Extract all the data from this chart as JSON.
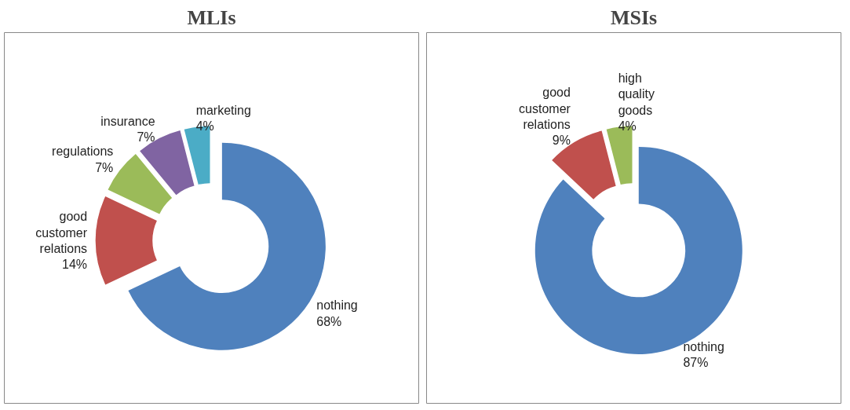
{
  "chart_data": [
    {
      "type": "donut",
      "title": "MLIs",
      "categories": [
        "nothing",
        "good customer relations",
        "regulations",
        "insurance",
        "marketing"
      ],
      "values": [
        68,
        14,
        7,
        7,
        4
      ],
      "colors": [
        "#4f81bd",
        "#c0504d",
        "#9bbb59",
        "#8064a2",
        "#4bacc6"
      ],
      "value_labels": [
        "68%",
        "14%",
        "7%",
        "7%",
        "4%"
      ],
      "legend": false
    },
    {
      "type": "donut",
      "title": "MSIs",
      "categories": [
        "nothing",
        "good customer relations",
        "high quality goods"
      ],
      "values": [
        87,
        9,
        4
      ],
      "colors": [
        "#4f81bd",
        "#c0504d",
        "#9bbb59"
      ],
      "value_labels": [
        "87%",
        "9%",
        "4%"
      ],
      "legend": false
    }
  ]
}
